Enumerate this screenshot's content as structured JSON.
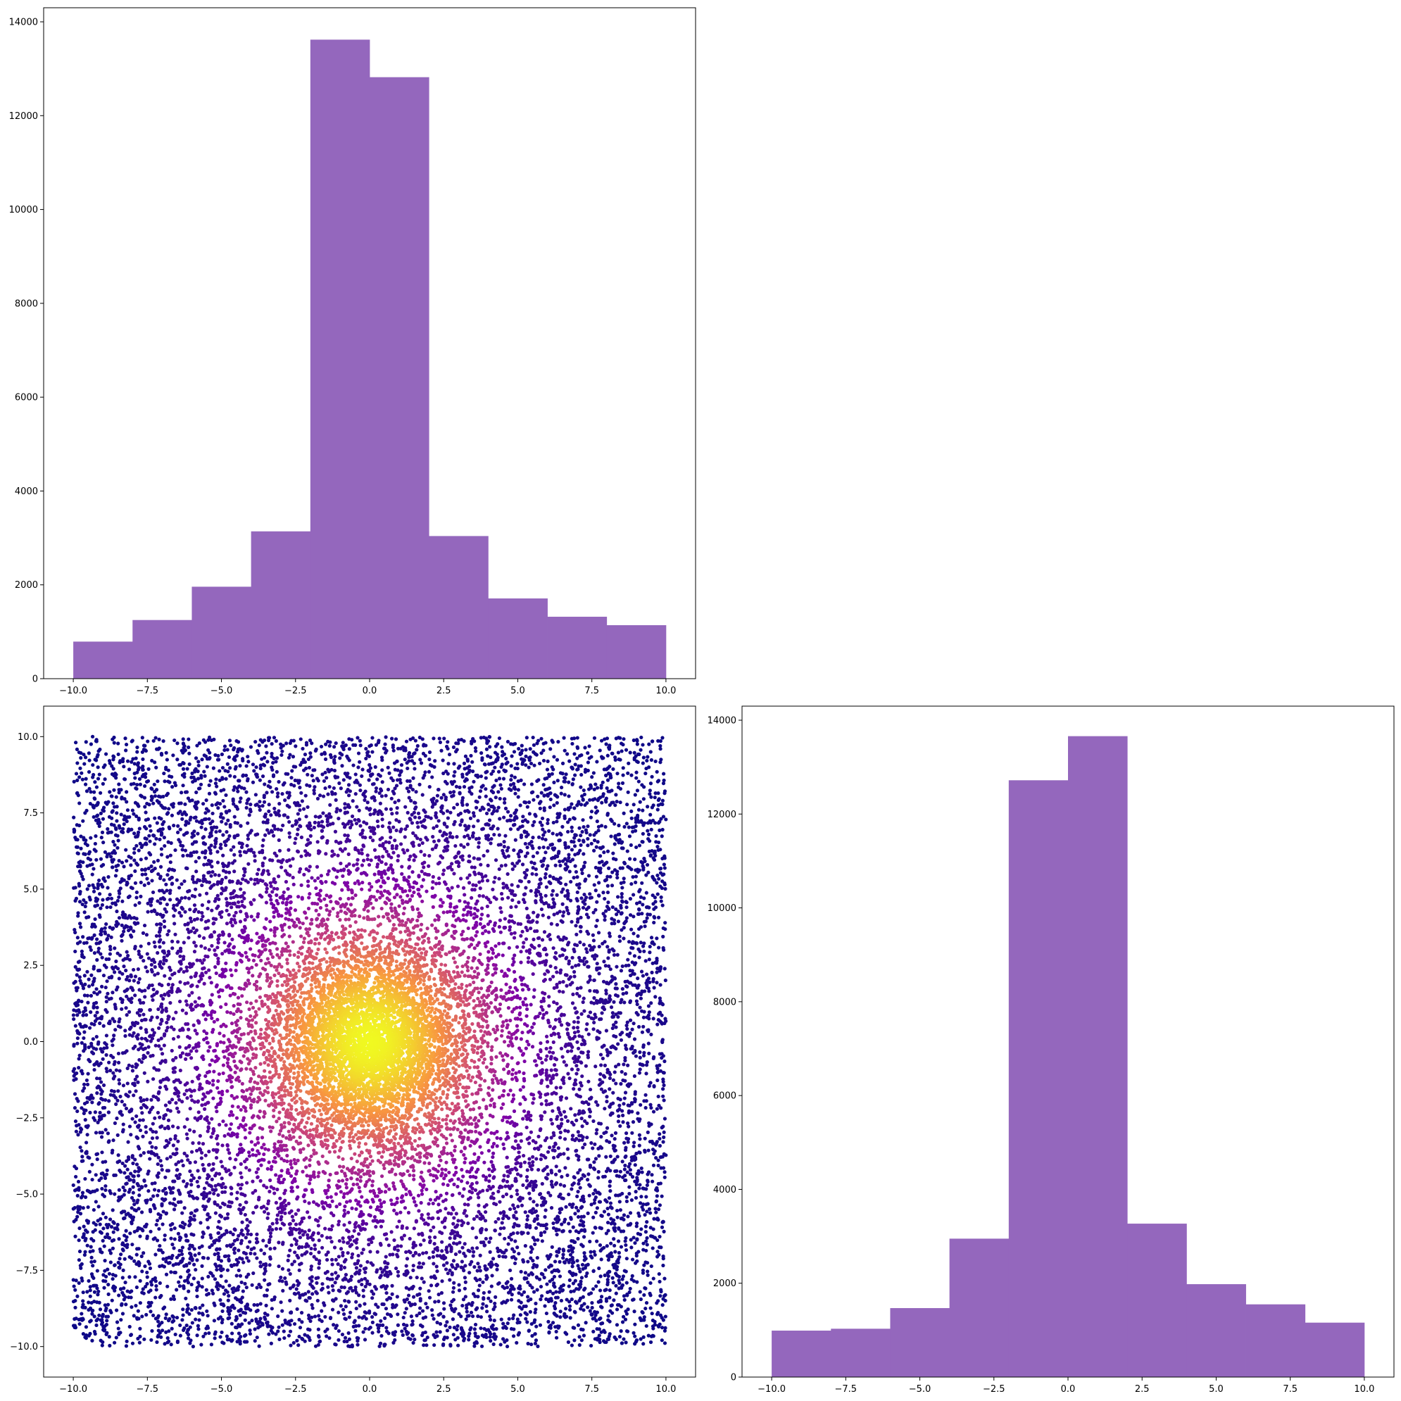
{
  "colors": {
    "bar_fill": "#9467bd",
    "axes_edge": "#000000",
    "background": "#ffffff",
    "scatter_colormap": "plasma"
  },
  "chart_data": [
    {
      "id": "hist-x",
      "type": "bar",
      "title": "",
      "xlabel": "",
      "ylabel": "",
      "bin_edges": [
        -10,
        -8,
        -6,
        -4,
        -2,
        0,
        2,
        4,
        6,
        8,
        10
      ],
      "values": [
        790,
        1250,
        1960,
        3140,
        13620,
        12820,
        3040,
        1710,
        1320,
        1140
      ],
      "xlim": [
        -11,
        11
      ],
      "ylim": [
        0,
        14300
      ],
      "xticks": [
        -10,
        -7.5,
        -5,
        -2.5,
        0,
        2.5,
        5,
        7.5,
        10
      ],
      "xtick_labels": [
        "−10.0",
        "−7.5",
        "−5.0",
        "−2.5",
        "0.0",
        "2.5",
        "5.0",
        "7.5",
        "10.0"
      ],
      "yticks": [
        0,
        2000,
        4000,
        6000,
        8000,
        10000,
        12000,
        14000
      ],
      "ytick_labels": [
        "0",
        "2000",
        "4000",
        "6000",
        "8000",
        "10000",
        "12000",
        "14000"
      ],
      "grid": false
    },
    {
      "id": "scatter-xy",
      "type": "scatter",
      "title": "",
      "xlabel": "",
      "ylabel": "",
      "distribution": "uniform square [-10, 10] x [-10, 10] plus concentrated cluster at origin; colored by density (plasma colormap)",
      "approx_points": 16000,
      "x_range": [
        -10,
        10
      ],
      "y_range": [
        -10,
        10
      ],
      "xlim": [
        -11,
        11
      ],
      "ylim": [
        -11,
        11
      ],
      "xticks": [
        -10,
        -7.5,
        -5,
        -2.5,
        0,
        2.5,
        5,
        7.5,
        10
      ],
      "xtick_labels": [
        "−10.0",
        "−7.5",
        "−5.0",
        "−2.5",
        "0.0",
        "2.5",
        "5.0",
        "7.5",
        "10.0"
      ],
      "yticks": [
        -10,
        -7.5,
        -5,
        -2.5,
        0,
        2.5,
        5,
        7.5,
        10
      ],
      "ytick_labels": [
        "−10.0",
        "−7.5",
        "−5.0",
        "−2.5",
        "0.0",
        "2.5",
        "5.0",
        "7.5",
        "10.0"
      ],
      "grid": false
    },
    {
      "id": "hist-y",
      "type": "bar",
      "title": "",
      "xlabel": "",
      "ylabel": "",
      "bin_edges": [
        -10,
        -8,
        -6,
        -4,
        -2,
        0,
        2,
        4,
        6,
        8,
        10
      ],
      "values": [
        990,
        1030,
        1470,
        2950,
        12720,
        13660,
        3270,
        1980,
        1550,
        1160
      ],
      "xlim": [
        -11,
        11
      ],
      "ylim": [
        0,
        14300
      ],
      "xticks": [
        -10,
        -7.5,
        -5,
        -2.5,
        0,
        2.5,
        5,
        7.5,
        10
      ],
      "xtick_labels": [
        "−10.0",
        "−7.5",
        "−5.0",
        "−2.5",
        "0.0",
        "2.5",
        "5.0",
        "7.5",
        "10.0"
      ],
      "yticks": [
        0,
        2000,
        4000,
        6000,
        8000,
        10000,
        12000,
        14000
      ],
      "ytick_labels": [
        "0",
        "2000",
        "4000",
        "6000",
        "8000",
        "10000",
        "12000",
        "14000"
      ],
      "grid": false
    }
  ]
}
